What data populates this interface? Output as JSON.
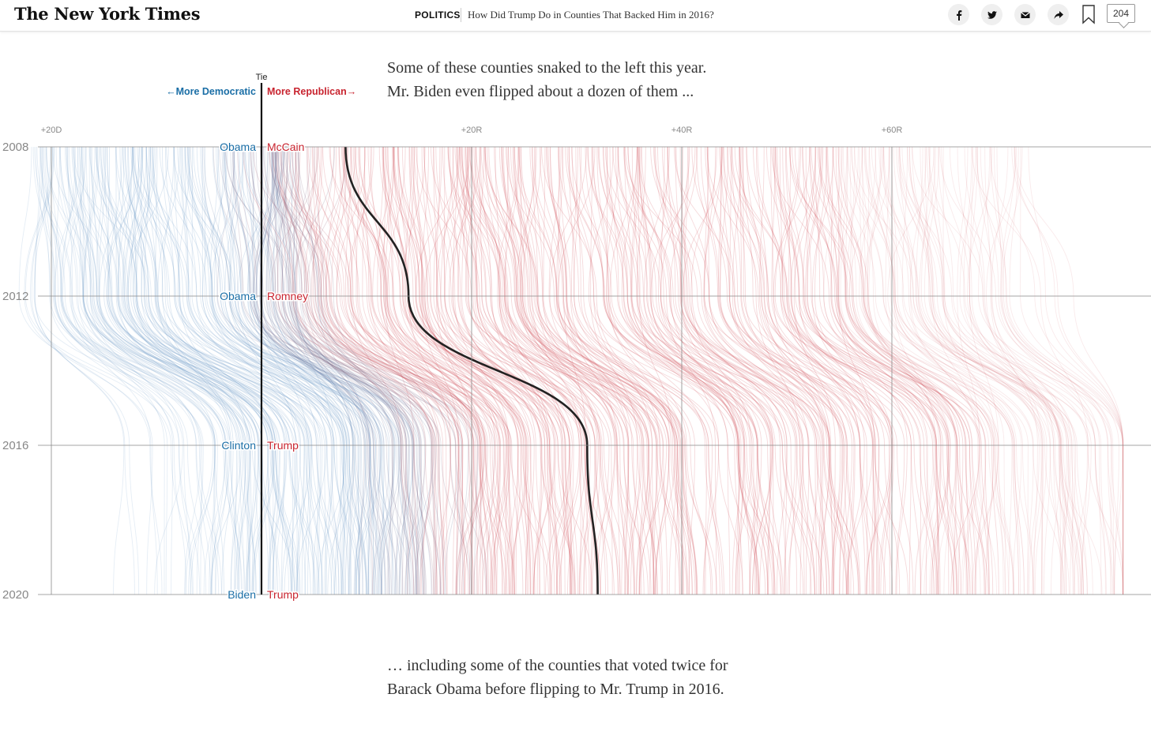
{
  "header": {
    "logo": "The New York Times",
    "section": "POLITICS",
    "headline": "How Did Trump Do in Counties That Backed Him in 2016?",
    "comment_count": "204",
    "share_icons": [
      "facebook-icon",
      "twitter-icon",
      "email-icon",
      "share-icon"
    ],
    "bookmark_icon": "bookmark-icon"
  },
  "text_top": {
    "line1": "Some of these counties snaked to the left this year.",
    "line2": "Mr. Biden even flipped about a dozen of them ..."
  },
  "text_bottom": {
    "line1": "… including some of the counties that voted twice for",
    "line2": "Barack Obama before flipping to Mr. Trump in 2016."
  },
  "colors": {
    "democratic": "#1a6ea6",
    "republican": "#c8242f",
    "highlight_line": "#222222",
    "grid": "#888888"
  },
  "chart_data": {
    "type": "line",
    "x_axis": {
      "ticks": [
        {
          "value": -20,
          "label": "+20D"
        },
        {
          "value": 20,
          "label": "+20R"
        },
        {
          "value": 40,
          "label": "+40R"
        },
        {
          "value": 60,
          "label": "+60R"
        }
      ],
      "tie_label": "Tie",
      "left_direction_label": "←More Democratic",
      "right_direction_label": "More Republican→",
      "range": [
        -25,
        85
      ]
    },
    "y_axis": {
      "years": [
        "2008",
        "2012",
        "2016",
        "2020"
      ]
    },
    "candidates": [
      {
        "year": "2008",
        "dem": "Obama",
        "rep": "McCain"
      },
      {
        "year": "2012",
        "dem": "Obama",
        "rep": "Romney"
      },
      {
        "year": "2016",
        "dem": "Clinton",
        "rep": "Trump"
      },
      {
        "year": "2020",
        "dem": "Biden",
        "rep": "Trump"
      }
    ],
    "highlighted_series": {
      "values": [
        8,
        14,
        31,
        32
      ]
    }
  }
}
